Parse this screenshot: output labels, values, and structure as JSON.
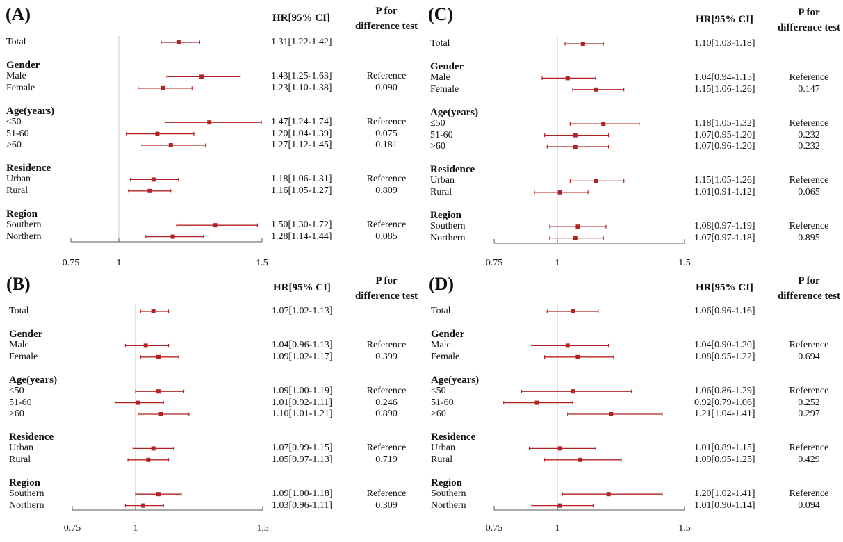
{
  "chart_data": [
    {
      "type": "forest",
      "panel": "(A)",
      "header_hr": "HR[95% CI]",
      "header_p_line1": "P for",
      "header_p_line2": "difference test",
      "xlim": [
        0.75,
        1.5
      ],
      "xticks": [
        "0.75",
        "1",
        "1.5"
      ],
      "rows": [
        {
          "kind": "item",
          "label": "Total",
          "hr": 1.31,
          "lo": 1.22,
          "hi": 1.42,
          "ci": "1.31[1.22-1.42]",
          "p": ""
        },
        {
          "kind": "group",
          "label": "Gender"
        },
        {
          "kind": "item",
          "label": "Male",
          "hr": 1.43,
          "lo": 1.25,
          "hi": 1.63,
          "ci": "1.43[1.25-1.63]",
          "p": "Reference"
        },
        {
          "kind": "item",
          "label": "Female",
          "hr": 1.23,
          "lo": 1.1,
          "hi": 1.38,
          "ci": "1.23[1.10-1.38]",
          "p": "0.090"
        },
        {
          "kind": "group",
          "label": "Age(years)"
        },
        {
          "kind": "item",
          "label": "≤50",
          "hr": 1.47,
          "lo": 1.24,
          "hi": 1.74,
          "ci": "1.47[1.24-1.74]",
          "p": "Reference"
        },
        {
          "kind": "item",
          "label": "51-60",
          "hr": 1.2,
          "lo": 1.04,
          "hi": 1.39,
          "ci": "1.20[1.04-1.39]",
          "p": "0.075"
        },
        {
          "kind": "item",
          "label": ">60",
          "hr": 1.27,
          "lo": 1.12,
          "hi": 1.45,
          "ci": "1.27[1.12-1.45]",
          "p": "0.181"
        },
        {
          "kind": "group",
          "label": "Residence"
        },
        {
          "kind": "item",
          "label": "Urban",
          "hr": 1.18,
          "lo": 1.06,
          "hi": 1.31,
          "ci": "1.18[1.06-1.31]",
          "p": "Reference"
        },
        {
          "kind": "item",
          "label": "Rural",
          "hr": 1.16,
          "lo": 1.05,
          "hi": 1.27,
          "ci": "1.16[1.05-1.27]",
          "p": "0.809"
        },
        {
          "kind": "group",
          "label": "Region"
        },
        {
          "kind": "item",
          "label": "Southern",
          "hr": 1.5,
          "lo": 1.3,
          "hi": 1.72,
          "ci": "1.50[1.30-1.72]",
          "p": "Reference"
        },
        {
          "kind": "item",
          "label": "Northern",
          "hr": 1.28,
          "lo": 1.14,
          "hi": 1.44,
          "ci": "1.28[1.14-1.44]",
          "p": "0.085"
        }
      ]
    },
    {
      "type": "forest",
      "panel": "(C)",
      "header_hr": "HR[95% CI]",
      "header_p_line1": "P for",
      "header_p_line2": "difference test",
      "xlim": [
        0.75,
        1.5
      ],
      "xticks": [
        "0.75",
        "1",
        "1.5"
      ],
      "rows": [
        {
          "kind": "item",
          "label": "Total",
          "hr": 1.1,
          "lo": 1.03,
          "hi": 1.18,
          "ci": "1.10[1.03-1.18]",
          "p": ""
        },
        {
          "kind": "group",
          "label": "Gender"
        },
        {
          "kind": "item",
          "label": "Male",
          "hr": 1.04,
          "lo": 0.94,
          "hi": 1.15,
          "ci": "1.04[0.94-1.15]",
          "p": "Reference"
        },
        {
          "kind": "item",
          "label": "Female",
          "hr": 1.15,
          "lo": 1.06,
          "hi": 1.26,
          "ci": "1.15[1.06-1.26]",
          "p": "0.147"
        },
        {
          "kind": "group",
          "label": "Age(years)"
        },
        {
          "kind": "item",
          "label": "≤50",
          "hr": 1.18,
          "lo": 1.05,
          "hi": 1.32,
          "ci": "1.18[1.05-1.32]",
          "p": "Reference"
        },
        {
          "kind": "item",
          "label": "51-60",
          "hr": 1.07,
          "lo": 0.95,
          "hi": 1.2,
          "ci": "1.07[0.95-1.20]",
          "p": "0.232"
        },
        {
          "kind": "item",
          "label": ">60",
          "hr": 1.07,
          "lo": 0.96,
          "hi": 1.2,
          "ci": "1.07[0.96-1.20]",
          "p": "0.232"
        },
        {
          "kind": "group",
          "label": "Residence"
        },
        {
          "kind": "item",
          "label": "Urban",
          "hr": 1.15,
          "lo": 1.05,
          "hi": 1.26,
          "ci": "1.15[1.05-1.26]",
          "p": "Reference"
        },
        {
          "kind": "item",
          "label": "Rural",
          "hr": 1.01,
          "lo": 0.91,
          "hi": 1.12,
          "ci": "1.01[0.91-1.12]",
          "p": "0.065"
        },
        {
          "kind": "group",
          "label": "Region"
        },
        {
          "kind": "item",
          "label": "Southern",
          "hr": 1.08,
          "lo": 0.97,
          "hi": 1.19,
          "ci": "1.08[0.97-1.19]",
          "p": "Reference"
        },
        {
          "kind": "item",
          "label": "Northern",
          "hr": 1.07,
          "lo": 0.97,
          "hi": 1.18,
          "ci": "1.07[0.97-1.18]",
          "p": "0.895"
        }
      ]
    },
    {
      "type": "forest",
      "panel": "(B)",
      "header_hr": "HR[95% CI]",
      "header_p_line1": "P for",
      "header_p_line2": "difference test",
      "xlim": [
        0.75,
        1.5
      ],
      "xticks": [
        "0.75",
        "1",
        "1.5"
      ],
      "rows": [
        {
          "kind": "item",
          "label": "Total",
          "hr": 1.07,
          "lo": 1.02,
          "hi": 1.13,
          "ci": "1.07[1.02-1.13]",
          "p": ""
        },
        {
          "kind": "group",
          "label": "Gender"
        },
        {
          "kind": "item",
          "label": "Male",
          "hr": 1.04,
          "lo": 0.96,
          "hi": 1.13,
          "ci": "1.04[0.96-1.13]",
          "p": "Reference"
        },
        {
          "kind": "item",
          "label": "Female",
          "hr": 1.09,
          "lo": 1.02,
          "hi": 1.17,
          "ci": "1.09[1.02-1.17]",
          "p": "0.399"
        },
        {
          "kind": "group",
          "label": "Age(years)"
        },
        {
          "kind": "item",
          "label": "≤50",
          "hr": 1.09,
          "lo": 1.0,
          "hi": 1.19,
          "ci": "1.09[1.00-1.19]",
          "p": "Reference"
        },
        {
          "kind": "item",
          "label": "51-60",
          "hr": 1.01,
          "lo": 0.92,
          "hi": 1.11,
          "ci": "1.01[0.92-1.11]",
          "p": "0.246"
        },
        {
          "kind": "item",
          "label": ">60",
          "hr": 1.1,
          "lo": 1.01,
          "hi": 1.21,
          "ci": "1.10[1.01-1.21]",
          "p": "0.890"
        },
        {
          "kind": "group",
          "label": "Residence"
        },
        {
          "kind": "item",
          "label": "Urban",
          "hr": 1.07,
          "lo": 0.99,
          "hi": 1.15,
          "ci": "1.07[0.99-1.15]",
          "p": "Reference"
        },
        {
          "kind": "item",
          "label": "Rural",
          "hr": 1.05,
          "lo": 0.97,
          "hi": 1.13,
          "ci": "1.05[0.97-1.13]",
          "p": "0.719"
        },
        {
          "kind": "group",
          "label": "Region"
        },
        {
          "kind": "item",
          "label": "Southern",
          "hr": 1.09,
          "lo": 1.0,
          "hi": 1.18,
          "ci": "1.09[1.00-1.18]",
          "p": "Reference"
        },
        {
          "kind": "item",
          "label": "Northern",
          "hr": 1.03,
          "lo": 0.96,
          "hi": 1.11,
          "ci": "1.03[0.96-1.11]",
          "p": "0.309"
        }
      ]
    },
    {
      "type": "forest",
      "panel": "(D)",
      "header_hr": "HR[95% CI]",
      "header_p_line1": "P for",
      "header_p_line2": "difference test",
      "xlim": [
        0.75,
        1.5
      ],
      "xticks": [
        "0.75",
        "1",
        "1.5"
      ],
      "rows": [
        {
          "kind": "item",
          "label": "Total",
          "hr": 1.06,
          "lo": 0.96,
          "hi": 1.16,
          "ci": "1.06[0.96-1.16]",
          "p": ""
        },
        {
          "kind": "group",
          "label": "Gender"
        },
        {
          "kind": "item",
          "label": "Male",
          "hr": 1.04,
          "lo": 0.9,
          "hi": 1.2,
          "ci": "1.04[0.90-1.20]",
          "p": "Reference"
        },
        {
          "kind": "item",
          "label": "Female",
          "hr": 1.08,
          "lo": 0.95,
          "hi": 1.22,
          "ci": "1.08[0.95-1.22]",
          "p": "0.694"
        },
        {
          "kind": "group",
          "label": "Age(years)"
        },
        {
          "kind": "item",
          "label": "≤50",
          "hr": 1.06,
          "lo": 0.86,
          "hi": 1.29,
          "ci": "1.06[0.86-1.29]",
          "p": "Reference"
        },
        {
          "kind": "item",
          "label": "51-60",
          "hr": 0.92,
          "lo": 0.79,
          "hi": 1.06,
          "ci": "0.92[0.79-1.06]",
          "p": "0.252"
        },
        {
          "kind": "item",
          "label": ">60",
          "hr": 1.21,
          "lo": 1.04,
          "hi": 1.41,
          "ci": "1.21[1.04-1.41]",
          "p": "0.297"
        },
        {
          "kind": "group",
          "label": "Residence"
        },
        {
          "kind": "item",
          "label": "Urban",
          "hr": 1.01,
          "lo": 0.89,
          "hi": 1.15,
          "ci": "1.01[0.89-1.15]",
          "p": "Reference"
        },
        {
          "kind": "item",
          "label": "Rural",
          "hr": 1.09,
          "lo": 0.95,
          "hi": 1.25,
          "ci": "1.09[0.95-1.25]",
          "p": "0.429"
        },
        {
          "kind": "group",
          "label": "Region"
        },
        {
          "kind": "item",
          "label": "Southern",
          "hr": 1.2,
          "lo": 1.02,
          "hi": 1.41,
          "ci": "1.20[1.02-1.41]",
          "p": "Reference"
        },
        {
          "kind": "item",
          "label": "Northern",
          "hr": 1.01,
          "lo": 0.9,
          "hi": 1.14,
          "ci": "1.01[0.90-1.14]",
          "p": "0.094"
        }
      ]
    }
  ],
  "colors": {
    "marker": "#b22222",
    "refline": "#c8c8c8",
    "axis": "#555555",
    "text": "#111111"
  }
}
